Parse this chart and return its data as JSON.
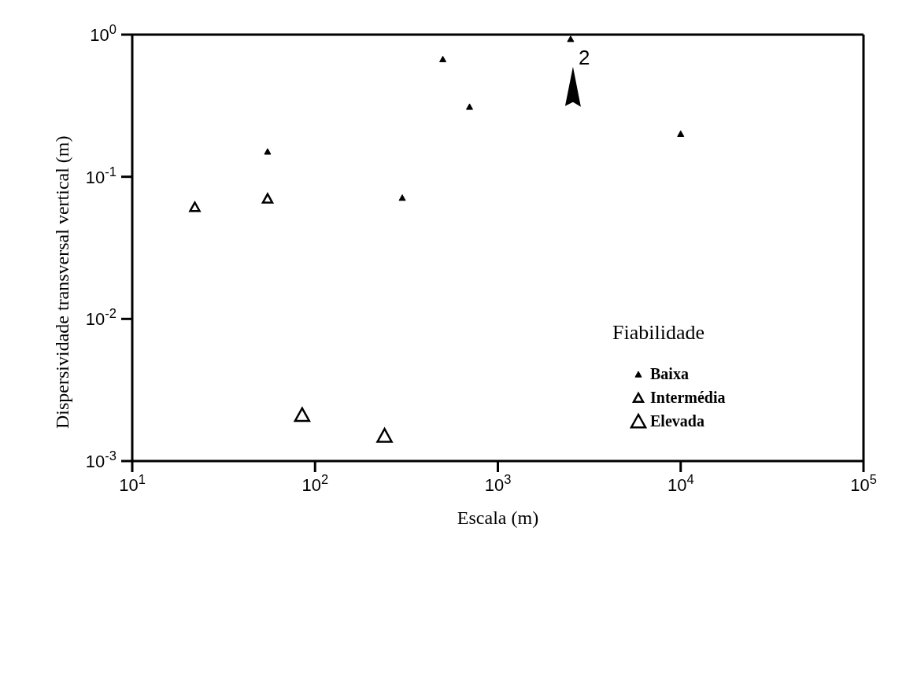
{
  "chart_data": {
    "type": "scatter",
    "xlabel": "Escala (m)",
    "ylabel": "Dispersividade transversal vertical (m)",
    "legend_title": "Fiabilidade",
    "legend": "bottom right",
    "log": "xy",
    "marker": "triangle",
    "xlim": [
      10,
      100000
    ],
    "xticks": [
      {
        "value": 10,
        "label": "10$^{1}$"
      },
      {
        "value": 100,
        "label": "10$^{2}$"
      },
      {
        "value": 1000,
        "label": "10$^{3}$"
      },
      {
        "value": 10000,
        "label": "10$^{4}$"
      },
      {
        "value": 100000,
        "label": "10$^{5}$"
      }
    ],
    "ylim": [
      0.001,
      1
    ],
    "yticks": [
      {
        "value": 0.001,
        "label": "10$^{-3}$"
      },
      {
        "value": 0.01,
        "label": "10$^{-2}$"
      },
      {
        "value": 0.1,
        "label": "10$^{-1}$"
      },
      {
        "value": 1,
        "label": "10$^{0}$"
      }
    ],
    "annotations": [
      {
        "text": "2",
        "x": 2500,
        "y": 0.93
      }
    ],
    "series": [
      {
        "name": "Baixa",
        "color": "#000000",
        "x": [
          500,
          700,
          2500,
          55,
          300,
          10000
        ],
        "values": [
          0.67,
          0.31,
          0.93,
          0.15,
          0.071,
          0.2
        ]
      },
      {
        "name": "Intermédia",
        "color": "#000000",
        "x": [
          22,
          55
        ],
        "values": [
          0.061,
          0.07
        ]
      },
      {
        "name": "Elevada",
        "color": "#000000",
        "x": [
          85,
          240
        ],
        "values": [
          0.0021,
          0.0015
        ]
      }
    ]
  }
}
